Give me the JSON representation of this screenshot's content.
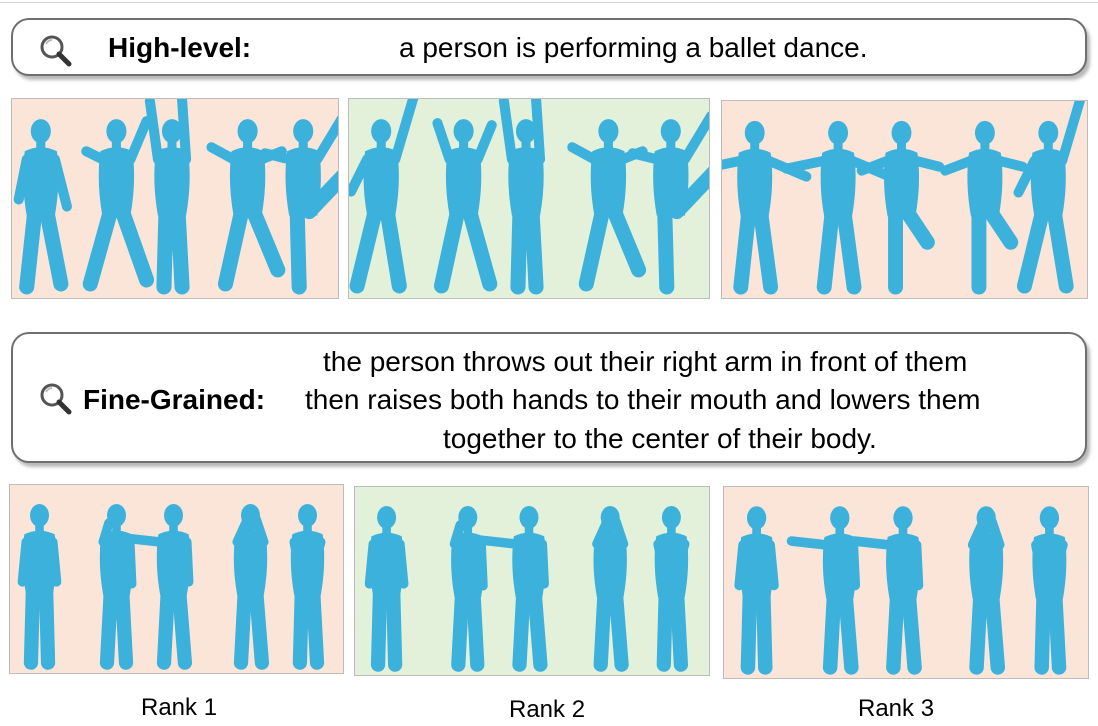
{
  "queries": [
    {
      "label": "High-level:",
      "lines": [
        "a person is performing a ballet dance."
      ]
    },
    {
      "label": "Fine-Grained:",
      "lines": [
        "the person throws out their right arm in front of them",
        "then raises both hands to their mouth and lowers them",
        "together to the center of their body."
      ]
    }
  ],
  "ranks": [
    "Rank 1",
    "Rank 2",
    "Rank 3"
  ],
  "icons": {
    "search": "magnifier-icon"
  },
  "colors": {
    "incorrect_bg": "#fbe5d9",
    "correct_bg": "#e3f0da",
    "figure": "#3cb1dc"
  },
  "results": [
    {
      "query": 0,
      "rank": 1,
      "correct": false,
      "poses": [
        "lean",
        "kick",
        "arms-up",
        "lunge",
        "arabesque"
      ]
    },
    {
      "query": 0,
      "rank": 2,
      "correct": true,
      "poses": [
        "arm-up",
        "step",
        "arms-up",
        "lunge",
        "arabesque"
      ]
    },
    {
      "query": 0,
      "rank": 3,
      "correct": false,
      "poses": [
        "arms-side",
        "arms-side",
        "knee-up",
        "knee-up",
        "arm-up"
      ]
    },
    {
      "query": 1,
      "rank": 1,
      "correct": false,
      "poses": [
        "stand",
        "hand-mouth",
        "arm-front",
        "hands-mouth",
        "hands-low"
      ]
    },
    {
      "query": 1,
      "rank": 2,
      "correct": true,
      "poses": [
        "stand",
        "hand-mouth",
        "arm-front",
        "hands-mouth",
        "hands-low"
      ]
    },
    {
      "query": 1,
      "rank": 3,
      "correct": false,
      "poses": [
        "stand",
        "arm-front",
        "arm-front",
        "hands-mouth",
        "hands-low"
      ]
    }
  ]
}
